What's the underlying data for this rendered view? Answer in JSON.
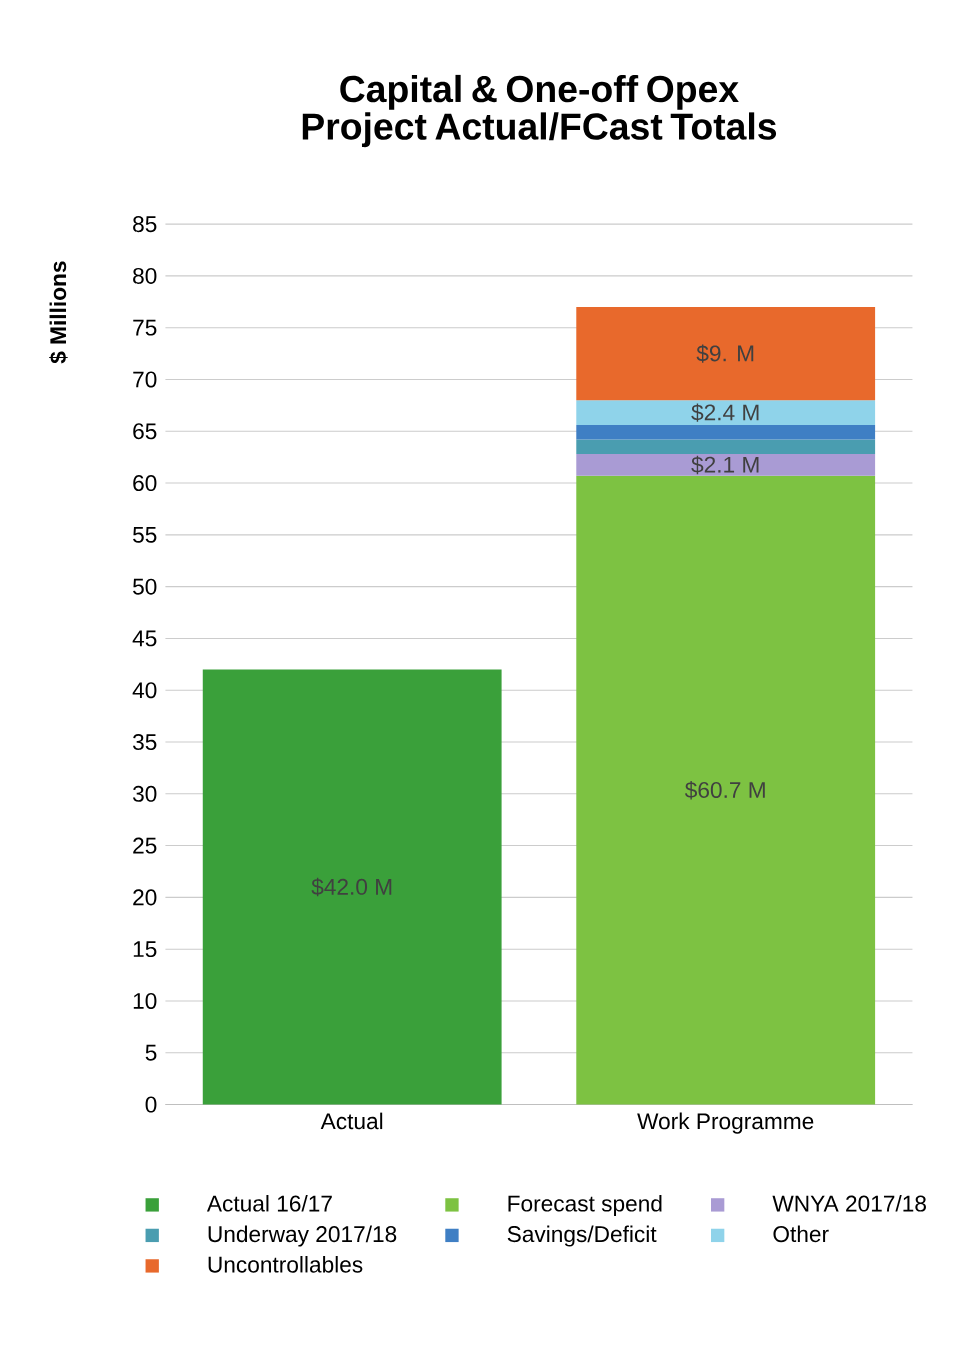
{
  "chart_data": {
    "type": "bar",
    "title": "Capital & One-off Opex Project Actual/FCast Totals",
    "ylabel": "$ Millions",
    "categories": [
      "Actual",
      "Work Programme"
    ],
    "stacked": true,
    "ylim": [
      0,
      85
    ],
    "yticks": [
      0,
      5,
      10,
      15,
      20,
      25,
      30,
      35,
      40,
      45,
      50,
      55,
      60,
      65,
      70,
      75,
      80,
      85
    ],
    "grid": "y",
    "legend": "bottom",
    "series": [
      {
        "name": "Actual 16/17",
        "color": "#3aa03a",
        "values": [
          42.0,
          null
        ],
        "value_labels": [
          "$42.0 M",
          null
        ]
      },
      {
        "name": "Forecast spend",
        "color": "#7dc242",
        "values": [
          null,
          60.7
        ],
        "value_labels": [
          null,
          "$60.7 M"
        ]
      },
      {
        "name": "WNYA 2017/18",
        "color": "#a99bd4",
        "values": [
          null,
          2.1
        ],
        "value_labels": [
          null,
          "$2.1 M"
        ]
      },
      {
        "name": "Underway 2017/18",
        "color": "#4a9db0",
        "values": [
          null,
          1.4
        ]
      },
      {
        "name": "Savings/Deficit",
        "color": "#3f7fc4",
        "values": [
          null,
          1.4
        ]
      },
      {
        "name": "Other",
        "color": "#8fd3ea",
        "values": [
          null,
          2.4
        ],
        "value_labels": [
          null,
          "$2.4 M"
        ]
      },
      {
        "name": "Uncontrollables",
        "color": "#e8692c",
        "values": [
          null,
          9
        ],
        "value_labels": [
          null,
          "$9. M"
        ]
      }
    ]
  }
}
